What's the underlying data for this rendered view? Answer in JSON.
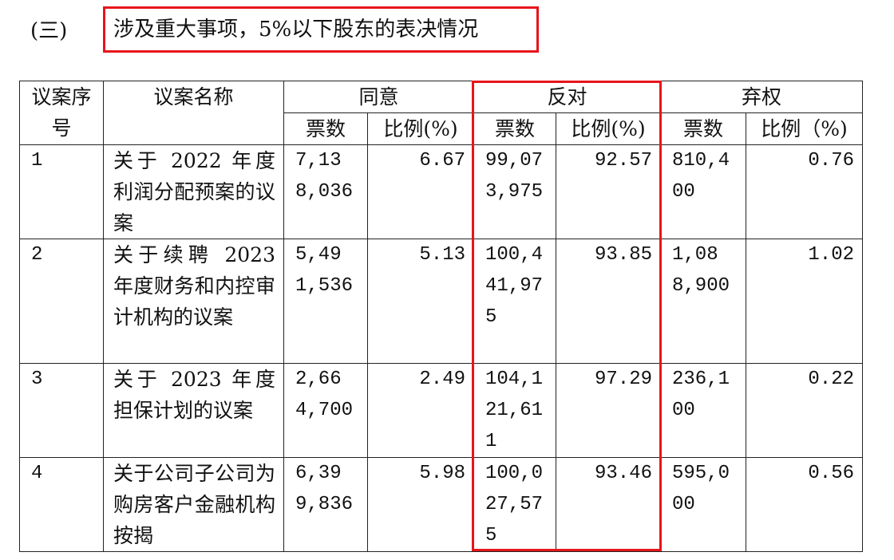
{
  "section": {
    "number": "(三)",
    "title": "涉及重大事项，5%以下股东的表决情况"
  },
  "table": {
    "headers": {
      "seq": "议案序号",
      "name": "议案名称",
      "agree": "同意",
      "oppose": "反对",
      "abstain": "弃权",
      "votes": "票数",
      "ratio": "比例(%)",
      "ratio_abstain": "比例（%)"
    },
    "rows": [
      {
        "seq": "1",
        "name": "关于 2022 年度利润分配预案的议案",
        "agree_votes": "7,138,036",
        "agree_ratio": "6.67",
        "oppose_votes": "99,073,975",
        "oppose_ratio": "92.57",
        "abstain_votes": "810,400",
        "abstain_ratio": "0.76"
      },
      {
        "seq": "2",
        "name": "关于续聘 2023 年度财务和内控审计机构的议案",
        "agree_votes": "5,491,536",
        "agree_ratio": "5.13",
        "oppose_votes": "100,441,975",
        "oppose_ratio": "93.85",
        "abstain_votes": "1,088,900",
        "abstain_ratio": "1.02"
      },
      {
        "seq": "3",
        "name": "关于 2023 年度担保计划的议案",
        "agree_votes": "2,664,700",
        "agree_ratio": "2.49",
        "oppose_votes": "104,121,611",
        "oppose_ratio": "97.29",
        "abstain_votes": "236,100",
        "abstain_ratio": "0.22"
      },
      {
        "seq": "4",
        "name": "关于公司子公司为购房客户金融机构按揭",
        "agree_votes": "6,399,836",
        "agree_ratio": "5.98",
        "oppose_votes": "100,027,575",
        "oppose_ratio": "93.46",
        "abstain_votes": "595,000",
        "abstain_ratio": "0.56"
      }
    ]
  },
  "highlight_color": "#e8141b"
}
